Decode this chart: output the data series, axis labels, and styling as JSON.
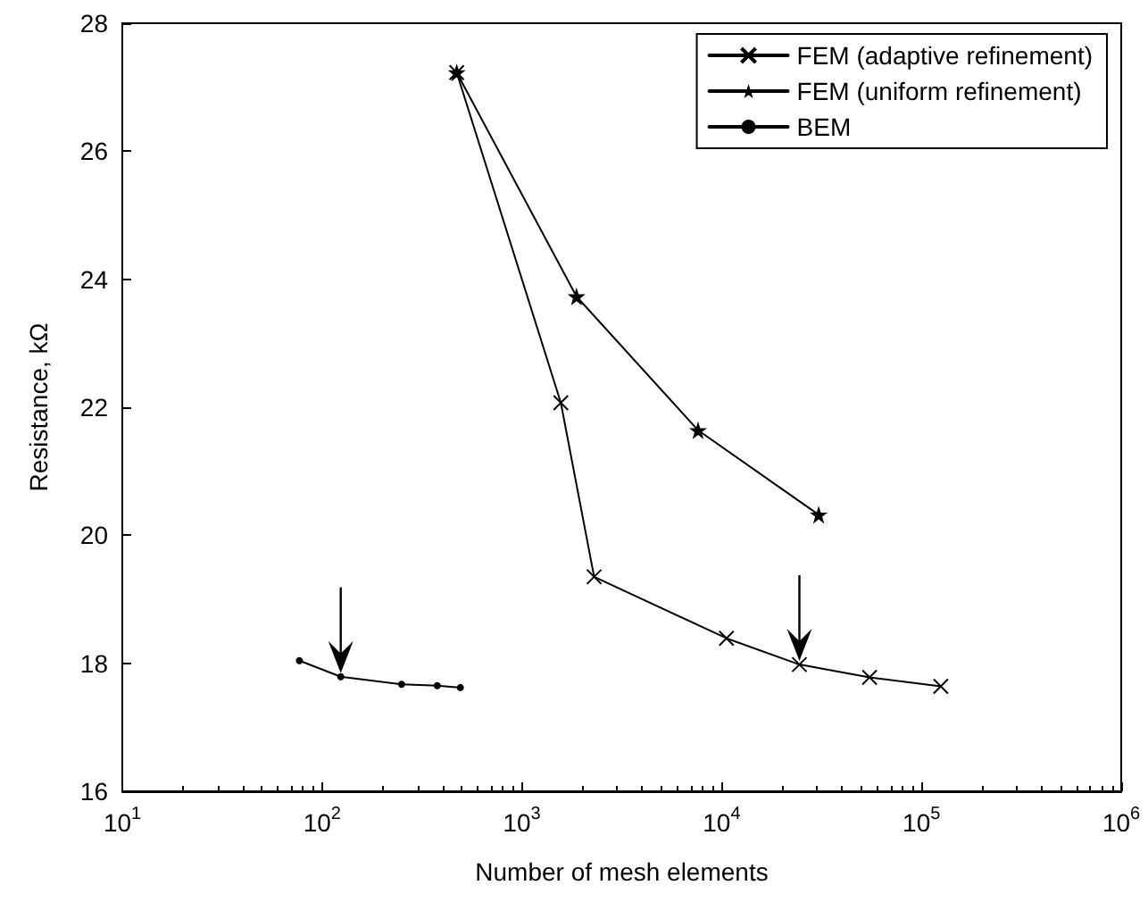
{
  "chart_data": {
    "type": "line",
    "xlabel": "Number of mesh elements",
    "ylabel": "Resistance, kΩ",
    "log": "x",
    "xlim": [
      10,
      1000000
    ],
    "xticks": [
      {
        "value": 10,
        "label": "10$^{1}$"
      },
      {
        "value": 100,
        "label": "10$^{2}$"
      },
      {
        "value": 1000,
        "label": "10$^{3}$"
      },
      {
        "value": 10000,
        "label": "10$^{4}$"
      },
      {
        "value": 100000,
        "label": "10$^{5}$"
      },
      {
        "value": 1000000,
        "label": "10$^{6}$"
      }
    ],
    "ylim": [
      16,
      28
    ],
    "yticks": [
      16,
      18,
      20,
      22,
      24,
      26,
      28
    ],
    "grid": false,
    "legend": "top right",
    "line_style": "solid",
    "series": [
      {
        "name": "FEM (adaptive refinement)",
        "color": "#000000",
        "marker": "cross",
        "x": [
          472,
          1567,
          2300,
          10570,
          24500,
          55000,
          125000
        ],
        "values": [
          27.23,
          22.07,
          19.35,
          18.39,
          17.98,
          17.78,
          17.64
        ]
      },
      {
        "name": "FEM (uniform refinement)",
        "color": "#000000",
        "marker": "star",
        "x": [
          472,
          1877,
          7620,
          30600
        ],
        "values": [
          27.23,
          23.73,
          21.64,
          20.32
        ]
      },
      {
        "name": "BEM",
        "color": "#000000",
        "marker": "circle",
        "x": [
          77,
          124,
          250,
          377,
          492
        ],
        "values": [
          18.04,
          17.79,
          17.67,
          17.65,
          17.62
        ]
      }
    ]
  }
}
